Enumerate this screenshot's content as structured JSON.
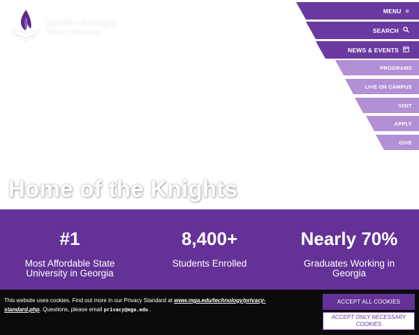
{
  "colors": {
    "primary": "#643297",
    "nav_primary": "#6a3aa0",
    "nav_secondary": "#b38fd6",
    "cookie_bg": "#0b0b0b"
  },
  "logo": {
    "line1": "Middle Georgia",
    "line2": "State University"
  },
  "nav": {
    "primary": [
      {
        "label": "MENU",
        "icon": "hamburger-icon"
      },
      {
        "label": "SEARCH",
        "icon": "search-icon"
      },
      {
        "label": "NEWS & EVENTS",
        "icon": "calendar-icon"
      }
    ],
    "secondary": [
      {
        "label": "PROGRAMS"
      },
      {
        "label": "LIVE ON CAMPUS"
      },
      {
        "label": "VISIT"
      },
      {
        "label": "APPLY"
      },
      {
        "label": "GIVE"
      }
    ]
  },
  "hero": {
    "title": "Home of the Knights"
  },
  "stats": [
    {
      "value": "#1",
      "label": "Most Affordable State University in Georgia"
    },
    {
      "value": "8,400+",
      "label": "Students Enrolled"
    },
    {
      "value": "Nearly 70%",
      "label": "Graduates Working in Georgia"
    }
  ],
  "cookie": {
    "text_before": "This website uses cookies. Find out more in our Privacy Standard at ",
    "link": "www.mga.edu/technology/privacy-standard.php",
    "text_middle": ". Questions, please email ",
    "email": "privacy@mga.edu",
    "text_after": " .",
    "accept_all": "ACCEPT ALL COOKIES",
    "accept_necessary": "ACCEPT ONLY NECESSARY COOKIES"
  }
}
